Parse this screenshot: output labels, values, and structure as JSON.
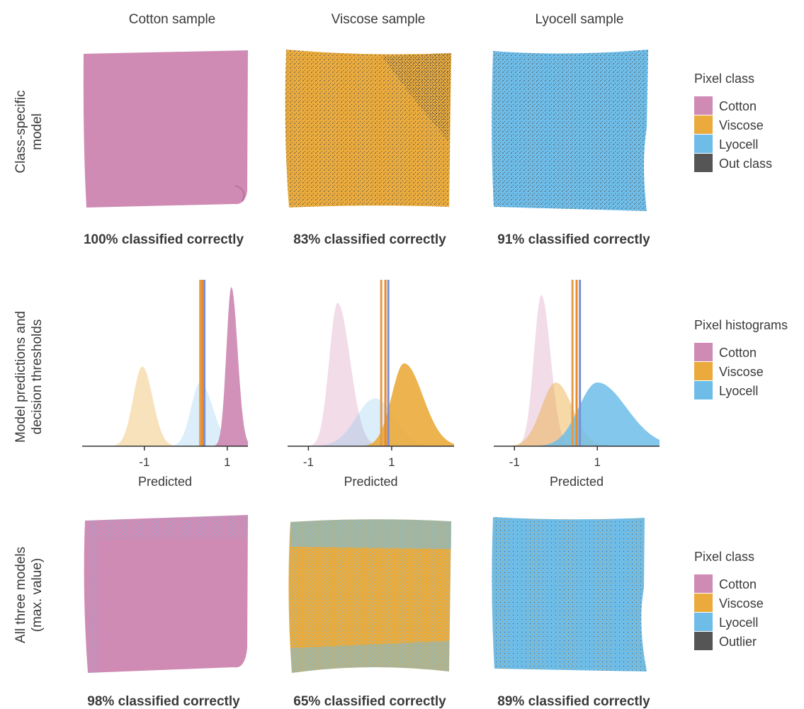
{
  "columns": [
    "Cotton sample",
    "Viscose sample",
    "Lyocell sample"
  ],
  "rows": {
    "class_specific": {
      "label_line1": "Class-specific",
      "label_line2": "model"
    },
    "histograms": {
      "label_line1": "Model predictions and",
      "label_line2": "decision thresholds"
    },
    "all_three": {
      "label_line1": "All three models",
      "label_line2": "(max. value)"
    }
  },
  "captions": {
    "class_specific": [
      "100% classified correctly",
      "83% classified correctly",
      "91% classified correctly"
    ],
    "all_three": [
      "98% classified correctly",
      "65% classified correctly",
      "89% classified correctly"
    ]
  },
  "colors": {
    "Cotton": "#cf8bb4",
    "Viscose": "#eaab3c",
    "Lyocell": "#6ebde9",
    "Out class": "#555555",
    "Outlier": "#555555",
    "threshold_cotton": "#e39a4a",
    "threshold_viscose": "#e98a2a",
    "threshold_lyocell": "#7b8fd6"
  },
  "legends": {
    "class_specific": {
      "title": "Pixel class",
      "items": [
        "Cotton",
        "Viscose",
        "Lyocell",
        "Out class"
      ]
    },
    "histograms": {
      "title": "Pixel histograms",
      "items": [
        "Cotton",
        "Viscose",
        "Lyocell"
      ]
    },
    "all_three": {
      "title": "Pixel class",
      "items": [
        "Cotton",
        "Viscose",
        "Lyocell",
        "Outlier"
      ]
    }
  },
  "chart_data": [
    {
      "type": "area",
      "panel": "Cotton sample",
      "xlabel": "Predicted",
      "xticks": [
        -1,
        1
      ],
      "xlim": [
        -2.5,
        1.5
      ],
      "thresholds": [
        0.35,
        0.4,
        0.45
      ],
      "series": [
        {
          "name": "Viscose",
          "peak_x": -1.05,
          "sigma_left": 0.22,
          "sigma_right": 0.25,
          "peak": 0.5,
          "opacity": 0.35
        },
        {
          "name": "Lyocell",
          "peak_x": 0.35,
          "sigma_left": 0.22,
          "sigma_right": 0.3,
          "peak": 0.4,
          "opacity": 0.25
        },
        {
          "name": "Cotton",
          "peak_x": 1.1,
          "sigma_left": 0.12,
          "sigma_right": 0.15,
          "peak": 1.0,
          "opacity": 0.95
        }
      ]
    },
    {
      "type": "area",
      "panel": "Viscose sample",
      "xlabel": "Predicted",
      "xticks": [
        -1,
        1
      ],
      "xlim": [
        -1.5,
        2.5
      ],
      "thresholds": [
        0.75,
        0.85,
        0.92
      ],
      "series": [
        {
          "name": "Cotton",
          "peak_x": -0.3,
          "sigma_left": 0.2,
          "sigma_right": 0.3,
          "peak": 0.9,
          "opacity": 0.3
        },
        {
          "name": "Lyocell",
          "peak_x": 0.6,
          "sigma_left": 0.45,
          "sigma_right": 0.45,
          "peak": 0.3,
          "opacity": 0.25
        },
        {
          "name": "Viscose",
          "peak_x": 1.3,
          "sigma_left": 0.3,
          "sigma_right": 0.45,
          "peak": 0.52,
          "opacity": 0.9
        }
      ]
    },
    {
      "type": "area",
      "panel": "Lyocell sample",
      "xlabel": "Predicted",
      "xticks": [
        -1,
        1
      ],
      "xlim": [
        -1.5,
        2.5
      ],
      "thresholds": [
        0.4,
        0.5,
        0.58
      ],
      "series": [
        {
          "name": "Cotton",
          "peak_x": -0.35,
          "sigma_left": 0.18,
          "sigma_right": 0.22,
          "peak": 0.95,
          "opacity": 0.3
        },
        {
          "name": "Viscose",
          "peak_x": 0.0,
          "sigma_left": 0.35,
          "sigma_right": 0.4,
          "peak": 0.4,
          "opacity": 0.45
        },
        {
          "name": "Lyocell",
          "peak_x": 1.0,
          "sigma_left": 0.45,
          "sigma_right": 0.7,
          "peak": 0.4,
          "opacity": 0.85
        }
      ]
    }
  ]
}
